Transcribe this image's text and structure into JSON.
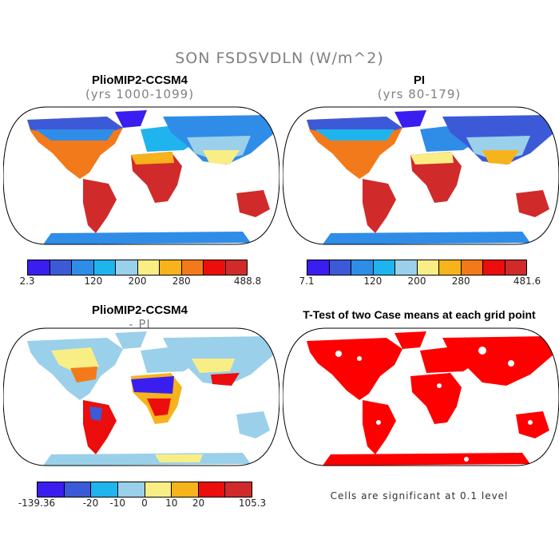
{
  "figure_title": "SON FSDSVDLN (W/m^2)",
  "panels": {
    "top_left": {
      "title": "PlioMIP2-CCSM4",
      "subtitle": "(yrs 1000-1099)"
    },
    "top_right": {
      "title": "PI",
      "subtitle": "(yrs 80-179)"
    },
    "bottom_left": {
      "title": "PlioMIP2-CCSM4",
      "subtitle": "- PI"
    },
    "bottom_right": {
      "title": "T-Test of two Case means at each grid point",
      "note": "Cells are significant at 0.1 level"
    }
  },
  "colorbars": {
    "top_left": {
      "colors": [
        "#3a1ef0",
        "#3c5ad8",
        "#2f8de8",
        "#1fb4ee",
        "#9ad0ea",
        "#f9ee86",
        "#f7b31b",
        "#f37a1a",
        "#ec0d0d",
        "#d12a2a"
      ],
      "labels": [
        "2.3",
        "120",
        "200",
        "280",
        "488.8"
      ]
    },
    "top_right": {
      "colors": [
        "#3a1ef0",
        "#3c5ad8",
        "#2f8de8",
        "#1fb4ee",
        "#9ad0ea",
        "#f9ee86",
        "#f7b31b",
        "#f37a1a",
        "#ec0d0d",
        "#d12a2a"
      ],
      "labels": [
        "7.1",
        "120",
        "200",
        "280",
        "481.6"
      ]
    },
    "bottom_left": {
      "colors": [
        "#3a1ef0",
        "#3c5ad8",
        "#1fb4ee",
        "#9ad0ea",
        "#f9ee86",
        "#f7b31b",
        "#ec0d0d",
        "#d12a2a"
      ],
      "labels": [
        "-139.36",
        "-20",
        "-10",
        "0",
        "10",
        "20",
        "105.3"
      ]
    }
  },
  "palette": {
    "land_high": "#d12a2a",
    "land_mid": "#f37a1a",
    "land_low": "#f9ee86",
    "land_polar": "#3c5ad8",
    "diff_pos": "#ec0d0d",
    "diff_neg": "#3c5ad8",
    "diff_neutral": "#9ad0ea",
    "ttest_sig": "#ff0000"
  }
}
